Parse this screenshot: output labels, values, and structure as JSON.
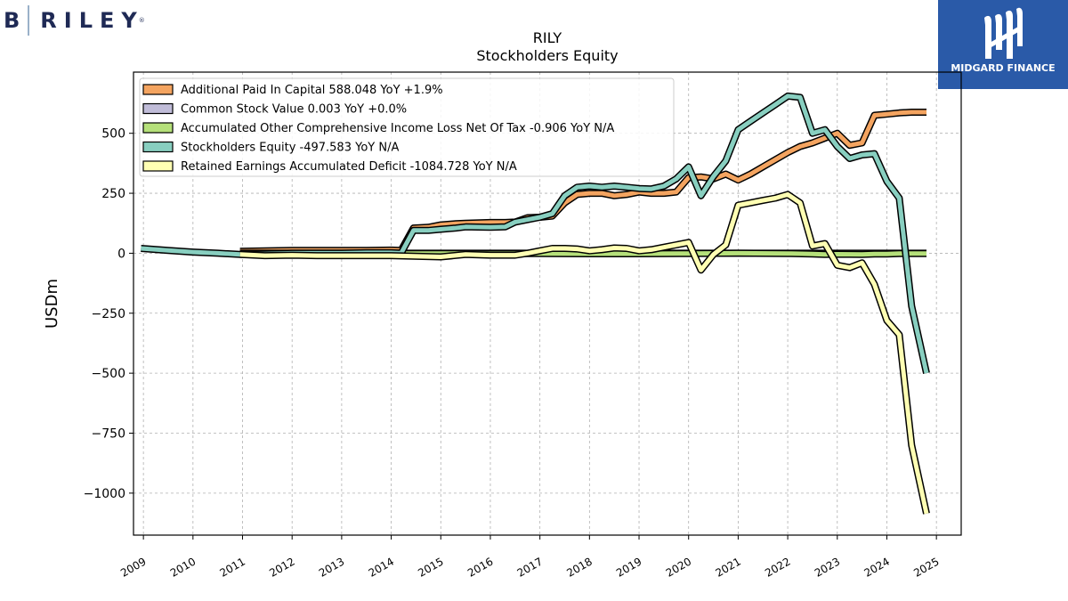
{
  "logos": {
    "left_letter": "B",
    "left_name": "RILEY",
    "left_reg": "®",
    "right_text": "MIDGARD FINANCE"
  },
  "chart_data": {
    "type": "line",
    "title": "RILY",
    "subtitle": "Stockholders  Equity",
    "ylabel": "USDm",
    "xlabel": "",
    "xlim": [
      2008.8,
      2025.5
    ],
    "ylim": [
      -1175,
      755
    ],
    "x_ticks": [
      2009,
      2010,
      2011,
      2012,
      2013,
      2014,
      2015,
      2016,
      2017,
      2018,
      2019,
      2020,
      2021,
      2022,
      2023,
      2024,
      2025
    ],
    "y_ticks": [
      500,
      250,
      0,
      -250,
      -500,
      -750,
      -1000
    ],
    "y_tick_labels": [
      "500",
      "250",
      "0",
      "−250",
      "−500",
      "−750",
      "−1000"
    ],
    "grid": true,
    "legend_position": "top-left",
    "series": [
      {
        "name": "Additional Paid In Capital  588.048 YoY +1.9%",
        "color": "#f4a460",
        "points": [
          [
            2010.95,
            8
          ],
          [
            2011.45,
            10
          ],
          [
            2012,
            12
          ],
          [
            2012.5,
            12
          ],
          [
            2013,
            12
          ],
          [
            2013.5,
            12
          ],
          [
            2014,
            13
          ],
          [
            2014.2,
            12
          ],
          [
            2014.45,
            105
          ],
          [
            2014.75,
            108
          ],
          [
            2015,
            118
          ],
          [
            2015.3,
            123
          ],
          [
            2015.5,
            125
          ],
          [
            2016,
            128
          ],
          [
            2016.3,
            128
          ],
          [
            2016.5,
            130
          ],
          [
            2016.75,
            148
          ],
          [
            2017,
            150
          ],
          [
            2017.25,
            155
          ],
          [
            2017.5,
            210
          ],
          [
            2017.75,
            245
          ],
          [
            2018,
            250
          ],
          [
            2018.25,
            250
          ],
          [
            2018.5,
            240
          ],
          [
            2018.75,
            245
          ],
          [
            2019,
            255
          ],
          [
            2019.25,
            250
          ],
          [
            2019.5,
            250
          ],
          [
            2019.75,
            255
          ],
          [
            2020,
            315
          ],
          [
            2020.25,
            318
          ],
          [
            2020.5,
            310
          ],
          [
            2020.75,
            330
          ],
          [
            2021,
            305
          ],
          [
            2021.25,
            330
          ],
          [
            2021.5,
            360
          ],
          [
            2021.75,
            390
          ],
          [
            2022,
            420
          ],
          [
            2022.25,
            445
          ],
          [
            2022.5,
            460
          ],
          [
            2022.75,
            480
          ],
          [
            2023,
            500
          ],
          [
            2023.25,
            450
          ],
          [
            2023.5,
            460
          ],
          [
            2023.75,
            575
          ],
          [
            2024,
            580
          ],
          [
            2024.25,
            585
          ],
          [
            2024.5,
            588
          ],
          [
            2024.8,
            588
          ]
        ]
      },
      {
        "name": "Common Stock Value  0.003 YoY +0.0%",
        "color": "#c0bcd8",
        "points": [
          [
            2010.95,
            0
          ],
          [
            2024.8,
            0
          ]
        ]
      },
      {
        "name": "Accumulated Other Comprehensive Income Loss Net Of Tax  -0.906 YoY N/A",
        "color": "#b5e07a",
        "points": [
          [
            2010.95,
            -1
          ],
          [
            2013,
            -1
          ],
          [
            2016,
            -1
          ],
          [
            2017,
            -1
          ],
          [
            2018,
            -2
          ],
          [
            2019,
            -2
          ],
          [
            2020,
            -1
          ],
          [
            2021,
            0
          ],
          [
            2022,
            -1
          ],
          [
            2022.5,
            -3
          ],
          [
            2022.75,
            -5
          ],
          [
            2023,
            -4
          ],
          [
            2023.5,
            -5
          ],
          [
            2023.75,
            -3
          ],
          [
            2024,
            -3
          ],
          [
            2024.25,
            -1
          ],
          [
            2024.5,
            -1
          ],
          [
            2024.8,
            -1
          ]
        ]
      },
      {
        "name": "Stockholders Equity  -497.583 YoY N/A",
        "color": "#88cfc0",
        "points": [
          [
            2008.95,
            20
          ],
          [
            2009.5,
            12
          ],
          [
            2010,
            5
          ],
          [
            2010.5,
            0
          ],
          [
            2010.95,
            -5
          ],
          [
            2011.45,
            -3
          ],
          [
            2012,
            0
          ],
          [
            2012.5,
            0
          ],
          [
            2013,
            0
          ],
          [
            2013.5,
            2
          ],
          [
            2014,
            2
          ],
          [
            2014.2,
            0
          ],
          [
            2014.45,
            95
          ],
          [
            2014.75,
            95
          ],
          [
            2015,
            100
          ],
          [
            2015.3,
            105
          ],
          [
            2015.5,
            110
          ],
          [
            2016,
            108
          ],
          [
            2016.3,
            110
          ],
          [
            2016.5,
            130
          ],
          [
            2016.75,
            140
          ],
          [
            2017,
            150
          ],
          [
            2017.25,
            165
          ],
          [
            2017.5,
            240
          ],
          [
            2017.75,
            275
          ],
          [
            2018,
            280
          ],
          [
            2018.25,
            275
          ],
          [
            2018.5,
            280
          ],
          [
            2018.75,
            275
          ],
          [
            2019,
            270
          ],
          [
            2019.25,
            268
          ],
          [
            2019.5,
            280
          ],
          [
            2019.75,
            310
          ],
          [
            2020,
            360
          ],
          [
            2020.25,
            240
          ],
          [
            2020.5,
            320
          ],
          [
            2020.75,
            385
          ],
          [
            2021,
            515
          ],
          [
            2021.25,
            550
          ],
          [
            2021.5,
            585
          ],
          [
            2021.75,
            620
          ],
          [
            2022,
            655
          ],
          [
            2022.25,
            650
          ],
          [
            2022.5,
            500
          ],
          [
            2022.75,
            515
          ],
          [
            2023,
            445
          ],
          [
            2023.25,
            395
          ],
          [
            2023.5,
            410
          ],
          [
            2023.75,
            415
          ],
          [
            2024,
            300
          ],
          [
            2024.25,
            230
          ],
          [
            2024.5,
            -220
          ],
          [
            2024.8,
            -500
          ]
        ]
      },
      {
        "name": "Retained Earnings Accumulated Deficit  -1084.728 YoY N/A",
        "color": "#ffffb3",
        "points": [
          [
            2010.95,
            -5
          ],
          [
            2011.45,
            -10
          ],
          [
            2012,
            -8
          ],
          [
            2012.5,
            -10
          ],
          [
            2013,
            -10
          ],
          [
            2013.5,
            -10
          ],
          [
            2014,
            -10
          ],
          [
            2014.45,
            -12
          ],
          [
            2015,
            -15
          ],
          [
            2015.5,
            -5
          ],
          [
            2016,
            -8
          ],
          [
            2016.5,
            -8
          ],
          [
            2016.75,
            0
          ],
          [
            2017,
            10
          ],
          [
            2017.25,
            20
          ],
          [
            2017.5,
            20
          ],
          [
            2017.75,
            18
          ],
          [
            2018,
            10
          ],
          [
            2018.25,
            15
          ],
          [
            2018.5,
            22
          ],
          [
            2018.75,
            20
          ],
          [
            2019,
            10
          ],
          [
            2019.25,
            15
          ],
          [
            2019.5,
            25
          ],
          [
            2019.75,
            35
          ],
          [
            2020,
            45
          ],
          [
            2020.25,
            -70
          ],
          [
            2020.5,
            -5
          ],
          [
            2020.75,
            35
          ],
          [
            2021,
            200
          ],
          [
            2021.25,
            210
          ],
          [
            2021.5,
            220
          ],
          [
            2021.75,
            230
          ],
          [
            2022,
            245
          ],
          [
            2022.25,
            210
          ],
          [
            2022.5,
            30
          ],
          [
            2022.75,
            40
          ],
          [
            2023,
            -50
          ],
          [
            2023.25,
            -60
          ],
          [
            2023.5,
            -40
          ],
          [
            2023.75,
            -130
          ],
          [
            2024,
            -280
          ],
          [
            2024.25,
            -340
          ],
          [
            2024.5,
            -800
          ],
          [
            2024.8,
            -1085
          ]
        ]
      }
    ]
  }
}
